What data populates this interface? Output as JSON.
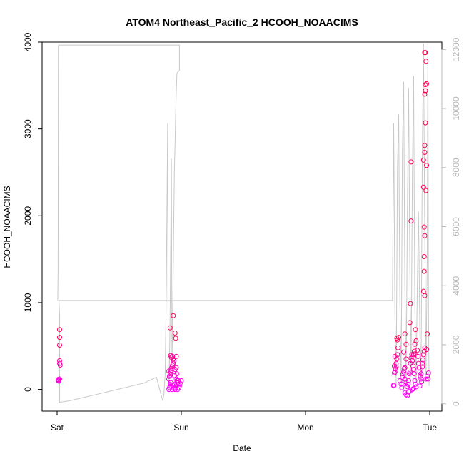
{
  "chart_data": {
    "type": "scatter",
    "title": "ATOM4 Northeast_Pacific_2 HCOOH_NOAACIMS",
    "xlabel": "Date",
    "ylabel": "HCOOH_NOAACIMS",
    "x_ticks": [
      "Sat",
      "Sun",
      "Mon",
      "Tue"
    ],
    "y_left": {
      "lim": [
        -250,
        4000
      ],
      "ticks": [
        0,
        1000,
        2000,
        3000,
        4000
      ]
    },
    "y_right": {
      "lim": [
        -250,
        12250
      ],
      "ticks": [
        0,
        2000,
        4000,
        6000,
        8000,
        10000,
        12000
      ]
    },
    "grid": false,
    "colors": {
      "points_low": "#ff00ff",
      "points_high": "#ff0050",
      "secondary_line": "#c8c8c8",
      "secondary_axis": "#b8b8b8"
    },
    "series": [
      {
        "kind": "points",
        "axis": "left",
        "x_unit": "days since Sat",
        "points": [
          [
            0.01,
            100
          ],
          [
            0.01,
            115
          ],
          [
            0.015,
            105
          ],
          [
            0.02,
            120
          ],
          [
            0.02,
            330
          ],
          [
            0.02,
            300
          ],
          [
            0.025,
            280
          ],
          [
            0.02,
            600
          ],
          [
            0.02,
            690
          ],
          [
            0.02,
            510
          ],
          [
            0.015,
            95
          ],
          [
            0.9,
            0
          ],
          [
            0.905,
            20
          ],
          [
            0.91,
            40
          ],
          [
            0.91,
            60
          ],
          [
            0.915,
            80
          ],
          [
            0.9,
            120
          ],
          [
            0.905,
            150
          ],
          [
            0.91,
            180
          ],
          [
            0.915,
            200
          ],
          [
            0.92,
            220
          ],
          [
            0.92,
            240
          ],
          [
            0.925,
            260
          ],
          [
            0.93,
            280
          ],
          [
            0.935,
            300
          ],
          [
            0.94,
            330
          ],
          [
            0.935,
            350
          ],
          [
            0.92,
            370
          ],
          [
            0.915,
            390
          ],
          [
            0.9,
            210
          ],
          [
            0.93,
            50
          ],
          [
            0.945,
            60
          ],
          [
            0.95,
            20
          ],
          [
            0.96,
            40
          ],
          [
            0.97,
            80
          ],
          [
            0.975,
            100
          ],
          [
            0.98,
            60
          ],
          [
            0.985,
            40
          ],
          [
            0.99,
            70
          ],
          [
            1.0,
            100
          ],
          [
            0.95,
            230
          ],
          [
            0.96,
            250
          ],
          [
            0.965,
            180
          ],
          [
            0.96,
            120
          ],
          [
            0.945,
            160
          ],
          [
            0.93,
            380
          ],
          [
            0.96,
            380
          ],
          [
            0.91,
            710
          ],
          [
            0.935,
            850
          ],
          [
            0.95,
            650
          ],
          [
            0.955,
            590
          ],
          [
            0.965,
            100
          ],
          [
            0.97,
            0
          ],
          [
            0.98,
            20
          ],
          [
            0.95,
            0
          ],
          [
            0.94,
            10
          ],
          [
            0.925,
            0
          ],
          [
            2.71,
            50
          ],
          [
            2.71,
            40
          ],
          [
            2.715,
            190
          ],
          [
            2.72,
            200
          ],
          [
            2.725,
            240
          ],
          [
            2.73,
            260
          ],
          [
            2.735,
            350
          ],
          [
            2.74,
            400
          ],
          [
            2.745,
            480
          ],
          [
            2.74,
            570
          ],
          [
            2.75,
            600
          ],
          [
            2.735,
            590
          ],
          [
            2.72,
            380
          ],
          [
            2.715,
            270
          ],
          [
            2.73,
            300
          ],
          [
            2.76,
            100
          ],
          [
            2.77,
            60
          ],
          [
            2.775,
            20
          ],
          [
            2.78,
            140
          ],
          [
            2.785,
            180
          ],
          [
            2.79,
            200
          ],
          [
            2.795,
            240
          ],
          [
            2.8,
            120
          ],
          [
            2.81,
            80
          ],
          [
            2.815,
            40
          ],
          [
            2.82,
            30
          ],
          [
            2.825,
            60
          ],
          [
            2.83,
            100
          ],
          [
            2.835,
            180
          ],
          [
            2.84,
            200
          ],
          [
            2.845,
            300
          ],
          [
            2.85,
            360
          ],
          [
            2.855,
            400
          ],
          [
            2.86,
            330
          ],
          [
            2.865,
            270
          ],
          [
            2.87,
            230
          ],
          [
            2.875,
            180
          ],
          [
            2.88,
            100
          ],
          [
            2.885,
            60
          ],
          [
            2.89,
            30
          ],
          [
            2.8,
            -40
          ],
          [
            2.81,
            -60
          ],
          [
            2.82,
            -70
          ],
          [
            2.83,
            -30
          ],
          [
            2.84,
            -20
          ],
          [
            2.86,
            0
          ],
          [
            2.87,
            10
          ],
          [
            2.8,
            250
          ],
          [
            2.81,
            350
          ],
          [
            2.79,
            430
          ],
          [
            2.8,
            640
          ],
          [
            2.81,
            520
          ],
          [
            2.84,
            770
          ],
          [
            2.845,
            990
          ],
          [
            2.85,
            1940
          ],
          [
            2.85,
            2620
          ],
          [
            2.86,
            330
          ],
          [
            2.87,
            400
          ],
          [
            2.88,
            520
          ],
          [
            2.885,
            690
          ],
          [
            2.89,
            560
          ],
          [
            2.9,
            450
          ],
          [
            2.905,
            380
          ],
          [
            2.91,
            300
          ],
          [
            2.915,
            250
          ],
          [
            2.92,
            200
          ],
          [
            2.925,
            150
          ],
          [
            2.93,
            120
          ],
          [
            2.935,
            90
          ],
          [
            2.94,
            300
          ],
          [
            2.945,
            340
          ],
          [
            2.95,
            400
          ],
          [
            2.955,
            440
          ],
          [
            2.96,
            480
          ],
          [
            2.95,
            1130
          ],
          [
            2.96,
            1080
          ],
          [
            2.955,
            1360
          ],
          [
            2.955,
            1530
          ],
          [
            2.96,
            1770
          ],
          [
            2.955,
            1870
          ],
          [
            2.95,
            2330
          ],
          [
            2.97,
            2290
          ],
          [
            2.95,
            2640
          ],
          [
            2.96,
            2810
          ],
          [
            2.96,
            2730
          ],
          [
            2.975,
            2580
          ],
          [
            2.965,
            3070
          ],
          [
            2.96,
            3400
          ],
          [
            2.965,
            3440
          ],
          [
            2.965,
            3510
          ],
          [
            2.975,
            3520
          ],
          [
            2.97,
            3780
          ],
          [
            2.96,
            3880
          ],
          [
            2.965,
            3880
          ],
          [
            2.98,
            150
          ],
          [
            2.985,
            120
          ],
          [
            2.99,
            190
          ],
          [
            2.975,
            460
          ],
          [
            2.98,
            640
          ],
          [
            2.97,
            120
          ],
          [
            2.92,
            40
          ],
          [
            2.93,
            180
          ],
          [
            2.94,
            260
          ],
          [
            2.88,
            410
          ],
          [
            2.875,
            440
          ]
        ]
      },
      {
        "kind": "line",
        "axis": "right",
        "x_unit": "days since Sat",
        "points": [
          [
            0.005,
            3500
          ],
          [
            0.008,
            4500
          ],
          [
            0.01,
            12100
          ],
          [
            0.012,
            12150
          ],
          [
            0.02,
            12150
          ],
          [
            0.5,
            12150
          ],
          [
            0.985,
            12150
          ],
          [
            0.985,
            11300
          ],
          [
            0.965,
            11200
          ],
          [
            0.96,
            10600
          ],
          [
            0.955,
            9900
          ],
          [
            0.95,
            8800
          ],
          [
            0.945,
            8000
          ],
          [
            0.94,
            6500
          ],
          [
            0.935,
            4500
          ],
          [
            0.93,
            2500
          ],
          [
            0.925,
            1500
          ],
          [
            0.92,
            8300
          ],
          [
            0.915,
            5500
          ],
          [
            0.91,
            3000
          ],
          [
            0.905,
            1500
          ],
          [
            0.9,
            600
          ],
          [
            0.895,
            400
          ],
          [
            0.89,
            9500
          ],
          [
            0.88,
            4000
          ],
          [
            0.87,
            1000
          ],
          [
            0.86,
            300
          ],
          [
            0.85,
            100
          ],
          [
            0.8,
            900
          ],
          [
            0.75,
            800
          ],
          [
            0.7,
            700
          ],
          [
            0.6,
            600
          ],
          [
            0.5,
            500
          ],
          [
            0.4,
            400
          ],
          [
            0.3,
            300
          ],
          [
            0.2,
            200
          ],
          [
            0.1,
            100
          ],
          [
            0.02,
            50
          ],
          [
            0.02,
            3000
          ],
          [
            0.015,
            3500
          ],
          [
            2.7,
            3500
          ],
          [
            2.71,
            9500
          ],
          [
            2.72,
            3000
          ],
          [
            2.73,
            600
          ],
          [
            2.74,
            8000
          ],
          [
            2.75,
            9800
          ],
          [
            2.76,
            3500
          ],
          [
            2.77,
            600
          ],
          [
            2.78,
            8500
          ],
          [
            2.79,
            10900
          ],
          [
            2.8,
            4000
          ],
          [
            2.81,
            600
          ],
          [
            2.82,
            6500
          ],
          [
            2.83,
            10700
          ],
          [
            2.84,
            4500
          ],
          [
            2.85,
            900
          ],
          [
            2.86,
            7500
          ],
          [
            2.87,
            11100
          ],
          [
            2.88,
            3500
          ],
          [
            2.89,
            700
          ],
          [
            2.9,
            4000
          ],
          [
            2.91,
            6500
          ],
          [
            2.92,
            2500
          ],
          [
            2.93,
            900
          ],
          [
            2.94,
            8500
          ],
          [
            2.95,
            12200
          ],
          [
            2.96,
            6000
          ],
          [
            2.97,
            1000
          ],
          [
            2.98,
            5000
          ],
          [
            2.985,
            12200
          ],
          [
            2.99,
            3000
          ],
          [
            2.995,
            600
          ]
        ]
      }
    ]
  }
}
